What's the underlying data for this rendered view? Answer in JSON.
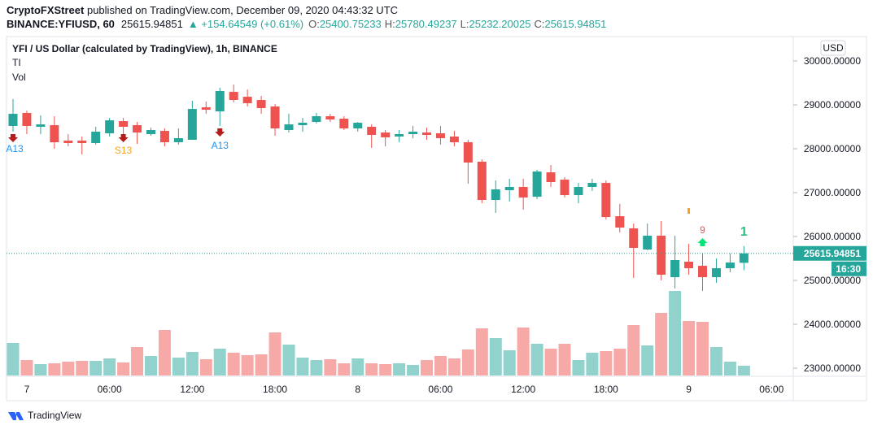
{
  "header": {
    "publisher": "CryptoFXStreet",
    "published": " published on TradingView.com, December 09, 2020 04:43:32 UTC",
    "symbol": "BINANCE:YFIUSD, 60",
    "change": "▲ +154.64549 (+0.61%)",
    "open_label": "O:",
    "high_label": "H:",
    "low_label": "L:",
    "close_label": "C:"
  },
  "chart_data": {
    "type": "candlestick",
    "title": "YFI / US Dollar (calculated by TradingView), 1h, BINANCE",
    "indicators": [
      "TI",
      "Vol"
    ],
    "currency": "USD",
    "countdown": "16:30",
    "categories": [
      null,
      "7",
      null,
      null,
      null,
      null,
      null,
      "06:00",
      null,
      null,
      null,
      null,
      null,
      "12:00",
      null,
      null,
      null,
      null,
      null,
      "18:00",
      null,
      null,
      null,
      null,
      null,
      "8",
      null,
      null,
      null,
      null,
      null,
      "06:00",
      null,
      null,
      null,
      null,
      null,
      "12:00",
      null,
      null,
      null,
      null,
      null,
      "18:00",
      null,
      null,
      null,
      null,
      null,
      "9",
      null,
      null,
      null,
      null,
      null,
      "06:00"
    ],
    "open": [
      28519,
      28815,
      28500,
      28537,
      28185,
      28185,
      28130,
      28352,
      28630,
      28537,
      28333,
      28407,
      28148,
      28204,
      28944,
      28852,
      29296,
      29185,
      29111,
      28963,
      28426,
      28537,
      28611,
      28741,
      28685,
      28463,
      28500,
      28370,
      28278,
      28333,
      28370,
      28352,
      28278,
      28148,
      27704,
      26833,
      27056,
      27130,
      26907,
      27463,
      27296,
      26944,
      27130,
      27222,
      26463,
      26185,
      25704,
      26019,
      25074,
      25426,
      25333,
      25074,
      25278,
      25400.75233,
      null,
      null
    ],
    "high": [
      29130,
      28870,
      28759,
      28740,
      28333,
      28278,
      28500,
      28704,
      28704,
      28611,
      28481,
      28463,
      28463,
      29093,
      29074,
      29389,
      29463,
      29352,
      29204,
      29019,
      28796,
      28704,
      28815,
      28796,
      28741,
      28611,
      28555,
      28426,
      28426,
      28519,
      28481,
      28519,
      28407,
      28204,
      27759,
      27278,
      27315,
      27315,
      27519,
      27630,
      27352,
      27222,
      27315,
      27278,
      26741,
      26296,
      26296,
      26352,
      26019,
      25833,
      25611,
      25500,
      25611,
      25780.49237,
      null,
      null
    ],
    "low": [
      28389,
      28333,
      28333,
      28000,
      28055,
      27870,
      28093,
      28278,
      28333,
      28111,
      28296,
      28055,
      28093,
      28204,
      28796,
      28519,
      29056,
      28963,
      28796,
      28296,
      28370,
      28389,
      28574,
      28611,
      28426,
      28389,
      28019,
      28055,
      28148,
      28241,
      28204,
      28093,
      28055,
      27204,
      26759,
      26537,
      26796,
      26611,
      26852,
      27130,
      26889,
      26759,
      27037,
      26389,
      26093,
      25056,
      25685,
      25000,
      24815,
      25130,
      24759,
      24944,
      25185,
      25232.20025,
      null,
      null
    ],
    "close": [
      28796,
      28519,
      28555,
      28148,
      28130,
      28130,
      28389,
      28648,
      28500,
      28370,
      28426,
      28148,
      28241,
      28907,
      28889,
      29315,
      29111,
      29037,
      28926,
      28463,
      28555,
      28593,
      28741,
      28667,
      28463,
      28593,
      28315,
      28259,
      28333,
      28389,
      28315,
      28241,
      28148,
      27685,
      26833,
      27074,
      27130,
      26889,
      27481,
      27241,
      26944,
      27130,
      27222,
      26444,
      26204,
      25741,
      26019,
      25130,
      25463,
      25278,
      25074,
      25278,
      25407,
      25615.94851,
      null,
      null
    ],
    "volume": [
      40,
      19,
      14,
      15,
      17,
      18,
      18,
      21,
      16,
      35,
      24,
      56,
      22,
      29,
      20,
      33,
      28,
      25,
      26,
      53,
      38,
      22,
      19,
      20,
      15,
      21,
      15,
      14,
      15,
      13,
      19,
      24,
      21,
      32,
      58,
      46,
      31,
      59,
      39,
      33,
      39,
      19,
      28,
      30,
      33,
      62,
      37,
      77,
      104,
      67,
      66,
      35,
      17,
      12,
      null,
      null
    ],
    "up_color": "#26a69a",
    "down_color": "#ef5350",
    "volume_up_color": "#92d2cc",
    "volume_down_color": "#f7a9a7",
    "ylim": [
      22815,
      30556
    ],
    "yticks": [
      {
        "value": 23000,
        "label": "23000.00000"
      },
      {
        "value": 24000,
        "label": "24000.00000"
      },
      {
        "value": 25000,
        "label": "25000.00000"
      },
      {
        "value": 26000,
        "label": "26000.00000"
      },
      {
        "value": 27000,
        "label": "27000.00000"
      },
      {
        "value": 28000,
        "label": "28000.00000"
      },
      {
        "value": 29000,
        "label": "29000.00000"
      },
      {
        "value": 30000,
        "label": "30000.00000"
      }
    ],
    "grid": false,
    "annotations": [
      "A13",
      "S13",
      "A13",
      "9",
      "1"
    ]
  },
  "footer": {
    "logo_text": "TradingView"
  }
}
